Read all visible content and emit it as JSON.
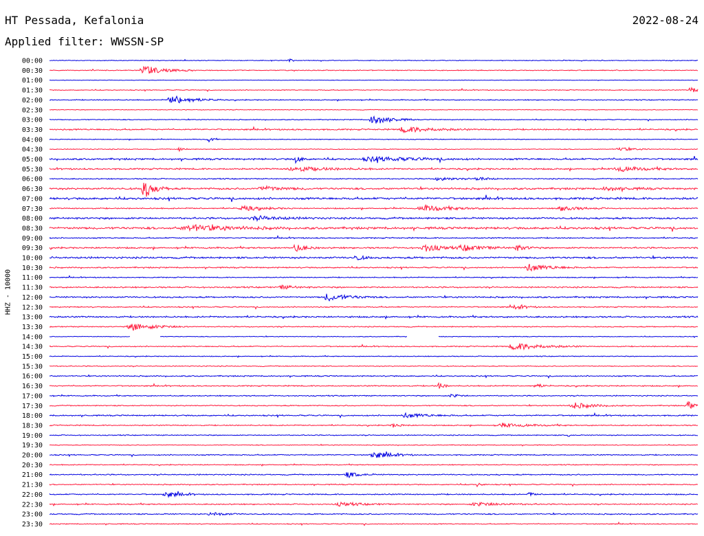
{
  "header": {
    "station": "HT Pessada, Kefalonia",
    "date": "2022-08-24",
    "filter": "Applied filter: WWSSN-SP"
  },
  "chart_data": {
    "type": "line",
    "title": "HT Pessada, Kefalonia",
    "ylabel": "HHZ - 10000",
    "colors": [
      "#0000e0",
      "#ff1a3c"
    ],
    "row_labels": [
      "00:00",
      "00:30",
      "01:00",
      "01:30",
      "02:00",
      "02:30",
      "03:00",
      "03:30",
      "04:00",
      "04:30",
      "05:00",
      "05:30",
      "06:00",
      "06:30",
      "07:00",
      "07:30",
      "08:00",
      "08:30",
      "09:00",
      "09:30",
      "10:00",
      "10:30",
      "11:00",
      "11:30",
      "12:00",
      "12:30",
      "13:00",
      "13:30",
      "14:00",
      "14:30",
      "15:00",
      "15:30",
      "16:00",
      "16:30",
      "17:00",
      "17:30",
      "18:00",
      "18:30",
      "19:00",
      "19:30",
      "20:00",
      "20:30",
      "21:00",
      "21:30",
      "22:00",
      "22:30",
      "23:00",
      "23:30"
    ],
    "noise": [
      0.6,
      0.7,
      0.4,
      0.7,
      0.8,
      0.6,
      0.7,
      1.2,
      0.6,
      0.7,
      1.5,
      1.3,
      0.9,
      1.6,
      1.8,
      1.0,
      1.6,
      1.9,
      1.0,
      1.3,
      1.6,
      1.1,
      0.8,
      1.2,
      1.3,
      1.0,
      1.3,
      0.9,
      0.6,
      0.9,
      0.7,
      0.8,
      1.0,
      1.0,
      0.9,
      0.9,
      1.1,
      0.9,
      0.8,
      0.7,
      0.9,
      0.8,
      1.0,
      0.9,
      1.0,
      1.0,
      1.0,
      0.8
    ],
    "events": [
      {
        "row": 0,
        "x": 0.37,
        "amp": 3,
        "dur": 0.004
      },
      {
        "row": 1,
        "x": 0.148,
        "amp": 6,
        "dur": 0.03
      },
      {
        "row": 3,
        "x": 0.99,
        "amp": 4,
        "dur": 0.015
      },
      {
        "row": 4,
        "x": 0.19,
        "amp": 6,
        "dur": 0.03
      },
      {
        "row": 6,
        "x": 0.5,
        "amp": 7,
        "dur": 0.025
      },
      {
        "row": 7,
        "x": 0.55,
        "amp": 4,
        "dur": 0.04
      },
      {
        "row": 8,
        "x": 0.245,
        "amp": 5,
        "dur": 0.006
      },
      {
        "row": 9,
        "x": 0.2,
        "amp": 2.5,
        "dur": 0.008
      },
      {
        "row": 9,
        "x": 0.88,
        "amp": 2.5,
        "dur": 0.02
      },
      {
        "row": 10,
        "x": 0.38,
        "amp": 5,
        "dur": 0.008
      },
      {
        "row": 10,
        "x": 0.5,
        "amp": 3,
        "dur": 0.06
      },
      {
        "row": 11,
        "x": 0.38,
        "amp": 3,
        "dur": 0.05
      },
      {
        "row": 11,
        "x": 0.88,
        "amp": 3,
        "dur": 0.04
      },
      {
        "row": 12,
        "x": 0.6,
        "amp": 3,
        "dur": 0.02
      },
      {
        "row": 12,
        "x": 0.66,
        "amp": 3,
        "dur": 0.015
      },
      {
        "row": 13,
        "x": 0.146,
        "amp": 14,
        "dur": 0.015
      },
      {
        "row": 13,
        "x": 0.33,
        "amp": 3,
        "dur": 0.03
      },
      {
        "row": 13,
        "x": 0.86,
        "amp": 2.5,
        "dur": 0.03
      },
      {
        "row": 15,
        "x": 0.3,
        "amp": 3,
        "dur": 0.03
      },
      {
        "row": 15,
        "x": 0.58,
        "amp": 4,
        "dur": 0.04
      },
      {
        "row": 15,
        "x": 0.79,
        "amp": 3,
        "dur": 0.03
      },
      {
        "row": 16,
        "x": 0.32,
        "amp": 2.5,
        "dur": 0.04
      },
      {
        "row": 17,
        "x": 0.22,
        "amp": 4,
        "dur": 0.06
      },
      {
        "row": 19,
        "x": 0.38,
        "amp": 5,
        "dur": 0.015
      },
      {
        "row": 19,
        "x": 0.58,
        "amp": 5,
        "dur": 0.025
      },
      {
        "row": 19,
        "x": 0.64,
        "amp": 4,
        "dur": 0.03
      },
      {
        "row": 19,
        "x": 0.72,
        "amp": 4,
        "dur": 0.015
      },
      {
        "row": 20,
        "x": 0.473,
        "amp": 4,
        "dur": 0.01
      },
      {
        "row": 21,
        "x": 0.74,
        "amp": 5,
        "dur": 0.03
      },
      {
        "row": 23,
        "x": 0.36,
        "amp": 2.5,
        "dur": 0.02
      },
      {
        "row": 24,
        "x": 0.43,
        "amp": 5,
        "dur": 0.03
      },
      {
        "row": 25,
        "x": 0.72,
        "amp": 3,
        "dur": 0.015
      },
      {
        "row": 27,
        "x": 0.13,
        "amp": 5,
        "dur": 0.035
      },
      {
        "row": 29,
        "x": 0.72,
        "amp": 5,
        "dur": 0.04
      },
      {
        "row": 33,
        "x": 0.6,
        "amp": 5,
        "dur": 0.008
      },
      {
        "row": 33,
        "x": 0.75,
        "amp": 3,
        "dur": 0.01
      },
      {
        "row": 34,
        "x": 0.62,
        "amp": 3,
        "dur": 0.01
      },
      {
        "row": 35,
        "x": 0.81,
        "amp": 4,
        "dur": 0.03
      },
      {
        "row": 35,
        "x": 0.985,
        "amp": 6,
        "dur": 0.008
      },
      {
        "row": 36,
        "x": 0.55,
        "amp": 3,
        "dur": 0.03
      },
      {
        "row": 37,
        "x": 0.53,
        "amp": 3,
        "dur": 0.01
      },
      {
        "row": 37,
        "x": 0.7,
        "amp": 2.5,
        "dur": 0.04
      },
      {
        "row": 38,
        "x": 0.8,
        "amp": 3,
        "dur": 0.003
      },
      {
        "row": 40,
        "x": 0.5,
        "amp": 5,
        "dur": 0.025
      },
      {
        "row": 42,
        "x": 0.46,
        "amp": 4,
        "dur": 0.018
      },
      {
        "row": 43,
        "x": 0.66,
        "amp": 3,
        "dur": 0.006
      },
      {
        "row": 44,
        "x": 0.18,
        "amp": 4,
        "dur": 0.02
      },
      {
        "row": 44,
        "x": 0.74,
        "amp": 2.5,
        "dur": 0.008
      },
      {
        "row": 45,
        "x": 0.45,
        "amp": 2.5,
        "dur": 0.03
      },
      {
        "row": 45,
        "x": 0.66,
        "amp": 2.5,
        "dur": 0.04
      },
      {
        "row": 46,
        "x": 0.25,
        "amp": 2.5,
        "dur": 0.02
      }
    ],
    "gaps": [
      {
        "row": 28,
        "from": 0.125,
        "to": 0.17
      },
      {
        "row": 28,
        "from": 0.552,
        "to": 0.6
      }
    ]
  }
}
